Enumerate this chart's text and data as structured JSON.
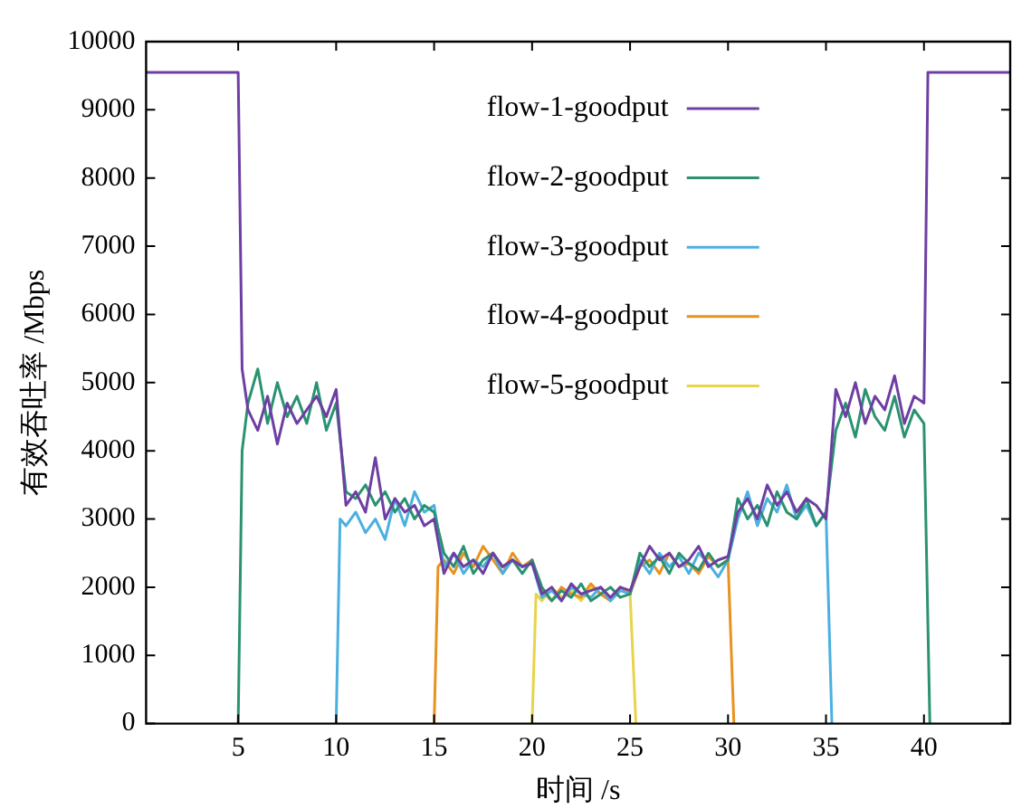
{
  "chart_data": {
    "type": "line",
    "xlabel": "时间 /s",
    "ylabel": "有效吞吐率 /Mbps",
    "xlim": [
      0.3,
      44.4
    ],
    "xticks": [
      5,
      10,
      15,
      20,
      25,
      30,
      35,
      40
    ],
    "ylim": [
      0,
      10000
    ],
    "yticks": [
      0,
      1000,
      2000,
      3000,
      4000,
      5000,
      6000,
      7000,
      8000,
      9000,
      10000
    ],
    "legend": "top",
    "marker": "none",
    "line_style": "solid",
    "series": [
      {
        "name": "flow-1-goodput",
        "color": "#6e3fa3",
        "x": [
          0.3,
          5.0,
          5.2,
          5.5,
          6,
          6.5,
          7,
          7.5,
          8,
          8.5,
          9,
          9.5,
          10,
          10.5,
          11,
          11.5,
          12,
          12.5,
          13,
          13.5,
          14,
          14.5,
          15,
          15.5,
          16,
          16.5,
          17,
          17.5,
          18,
          18.5,
          19,
          19.5,
          20,
          20.5,
          21,
          21.5,
          22,
          22.5,
          23,
          23.5,
          24,
          24.5,
          25,
          25.5,
          26,
          26.5,
          27,
          27.5,
          28,
          28.5,
          29,
          29.5,
          30,
          30.5,
          31,
          31.5,
          32,
          32.5,
          33,
          33.5,
          34,
          34.5,
          35,
          35.5,
          36,
          36.5,
          37,
          37.5,
          38,
          38.5,
          39,
          39.5,
          40,
          40.2,
          44.4
        ],
        "values": [
          9550,
          9550,
          5200,
          4600,
          4300,
          4800,
          4100,
          4700,
          4400,
          4600,
          4800,
          4500,
          4900,
          3200,
          3400,
          3100,
          3900,
          3000,
          3300,
          3100,
          3200,
          2900,
          3000,
          2200,
          2500,
          2300,
          2400,
          2200,
          2500,
          2300,
          2400,
          2300,
          2350,
          1900,
          2000,
          1800,
          2050,
          1900,
          1950,
          2000,
          1850,
          2000,
          1950,
          2300,
          2600,
          2400,
          2500,
          2300,
          2400,
          2600,
          2300,
          2400,
          2450,
          3100,
          3300,
          3000,
          3500,
          3200,
          3400,
          3100,
          3300,
          3200,
          3000,
          4900,
          4500,
          5000,
          4400,
          4800,
          4600,
          5100,
          4400,
          4800,
          4700,
          9550,
          9550
        ]
      },
      {
        "name": "flow-2-goodput",
        "color": "#2a9272",
        "x": [
          5.0,
          5.2,
          5.5,
          6,
          6.5,
          7,
          7.5,
          8,
          8.5,
          9,
          9.5,
          10,
          10.5,
          11,
          11.5,
          12,
          12.5,
          13,
          13.5,
          14,
          14.5,
          15,
          15.5,
          16,
          16.5,
          17,
          17.5,
          18,
          18.5,
          19,
          19.5,
          20,
          20.5,
          21,
          21.5,
          22,
          22.5,
          23,
          23.5,
          24,
          24.5,
          25,
          25.5,
          26,
          26.5,
          27,
          27.5,
          28,
          28.5,
          29,
          29.5,
          30,
          30.5,
          31,
          31.5,
          32,
          32.5,
          33,
          33.5,
          34,
          34.5,
          35,
          35.5,
          36,
          36.5,
          37,
          37.5,
          38,
          38.5,
          39,
          39.5,
          40,
          40.3
        ],
        "values": [
          0,
          4000,
          4700,
          5200,
          4400,
          5000,
          4500,
          4800,
          4400,
          5000,
          4300,
          4700,
          3400,
          3300,
          3500,
          3200,
          3400,
          3100,
          3300,
          3000,
          3200,
          3100,
          2500,
          2300,
          2600,
          2200,
          2400,
          2500,
          2300,
          2400,
          2200,
          2400,
          2000,
          1800,
          1950,
          1850,
          2050,
          1800,
          1900,
          2000,
          1850,
          1900,
          2500,
          2300,
          2450,
          2200,
          2500,
          2350,
          2250,
          2500,
          2300,
          2400,
          3300,
          3000,
          3200,
          2900,
          3400,
          3100,
          3000,
          3300,
          2900,
          3100,
          4300,
          4700,
          4200,
          4900,
          4500,
          4300,
          4800,
          4200,
          4600,
          4400,
          0
        ]
      },
      {
        "name": "flow-3-goodput",
        "color": "#4bb0e0",
        "x": [
          10.0,
          10.2,
          10.5,
          11,
          11.5,
          12,
          12.5,
          13,
          13.5,
          14,
          14.5,
          15,
          15.5,
          16,
          16.5,
          17,
          17.5,
          18,
          18.5,
          19,
          19.5,
          20,
          20.5,
          21,
          21.5,
          22,
          22.5,
          23,
          23.5,
          24,
          24.5,
          25,
          25.5,
          26,
          26.5,
          27,
          27.5,
          28,
          28.5,
          29,
          29.5,
          30,
          30.5,
          31,
          31.5,
          32,
          32.5,
          33,
          33.5,
          34,
          34.5,
          35,
          35.3
        ],
        "values": [
          0,
          3000,
          2900,
          3100,
          2800,
          3000,
          2700,
          3300,
          2900,
          3400,
          3100,
          3200,
          2300,
          2500,
          2200,
          2400,
          2300,
          2500,
          2200,
          2400,
          2300,
          2350,
          1850,
          1950,
          1800,
          2000,
          1900,
          1850,
          2000,
          1800,
          1950,
          1900,
          2400,
          2200,
          2500,
          2300,
          2450,
          2200,
          2500,
          2350,
          2150,
          2400,
          3000,
          3400,
          2900,
          3300,
          3100,
          3500,
          3000,
          3200,
          2900,
          3100,
          0
        ]
      },
      {
        "name": "flow-4-goodput",
        "color": "#e8921f",
        "x": [
          15.0,
          15.2,
          15.5,
          16,
          16.5,
          17,
          17.5,
          18,
          18.5,
          19,
          19.5,
          20,
          20.5,
          21,
          21.5,
          22,
          22.5,
          23,
          23.5,
          24,
          24.5,
          25,
          25.5,
          26,
          26.5,
          27,
          27.5,
          28,
          28.5,
          29,
          29.5,
          30,
          30.3
        ],
        "values": [
          0,
          2300,
          2400,
          2200,
          2500,
          2300,
          2600,
          2400,
          2200,
          2500,
          2300,
          2400,
          1950,
          1800,
          2000,
          1900,
          1850,
          2050,
          1900,
          1800,
          2000,
          1900,
          2300,
          2400,
          2200,
          2500,
          2300,
          2350,
          2200,
          2450,
          2300,
          2400,
          0
        ]
      },
      {
        "name": "flow-5-goodput",
        "color": "#e8d44a",
        "x": [
          20.0,
          20.2,
          20.5,
          21,
          21.5,
          22,
          22.5,
          23,
          23.5,
          24,
          24.5,
          25,
          25.3
        ],
        "values": [
          0,
          1900,
          1800,
          2000,
          1850,
          1950,
          1800,
          2000,
          1900,
          1850,
          2000,
          1900,
          0
        ]
      }
    ]
  }
}
